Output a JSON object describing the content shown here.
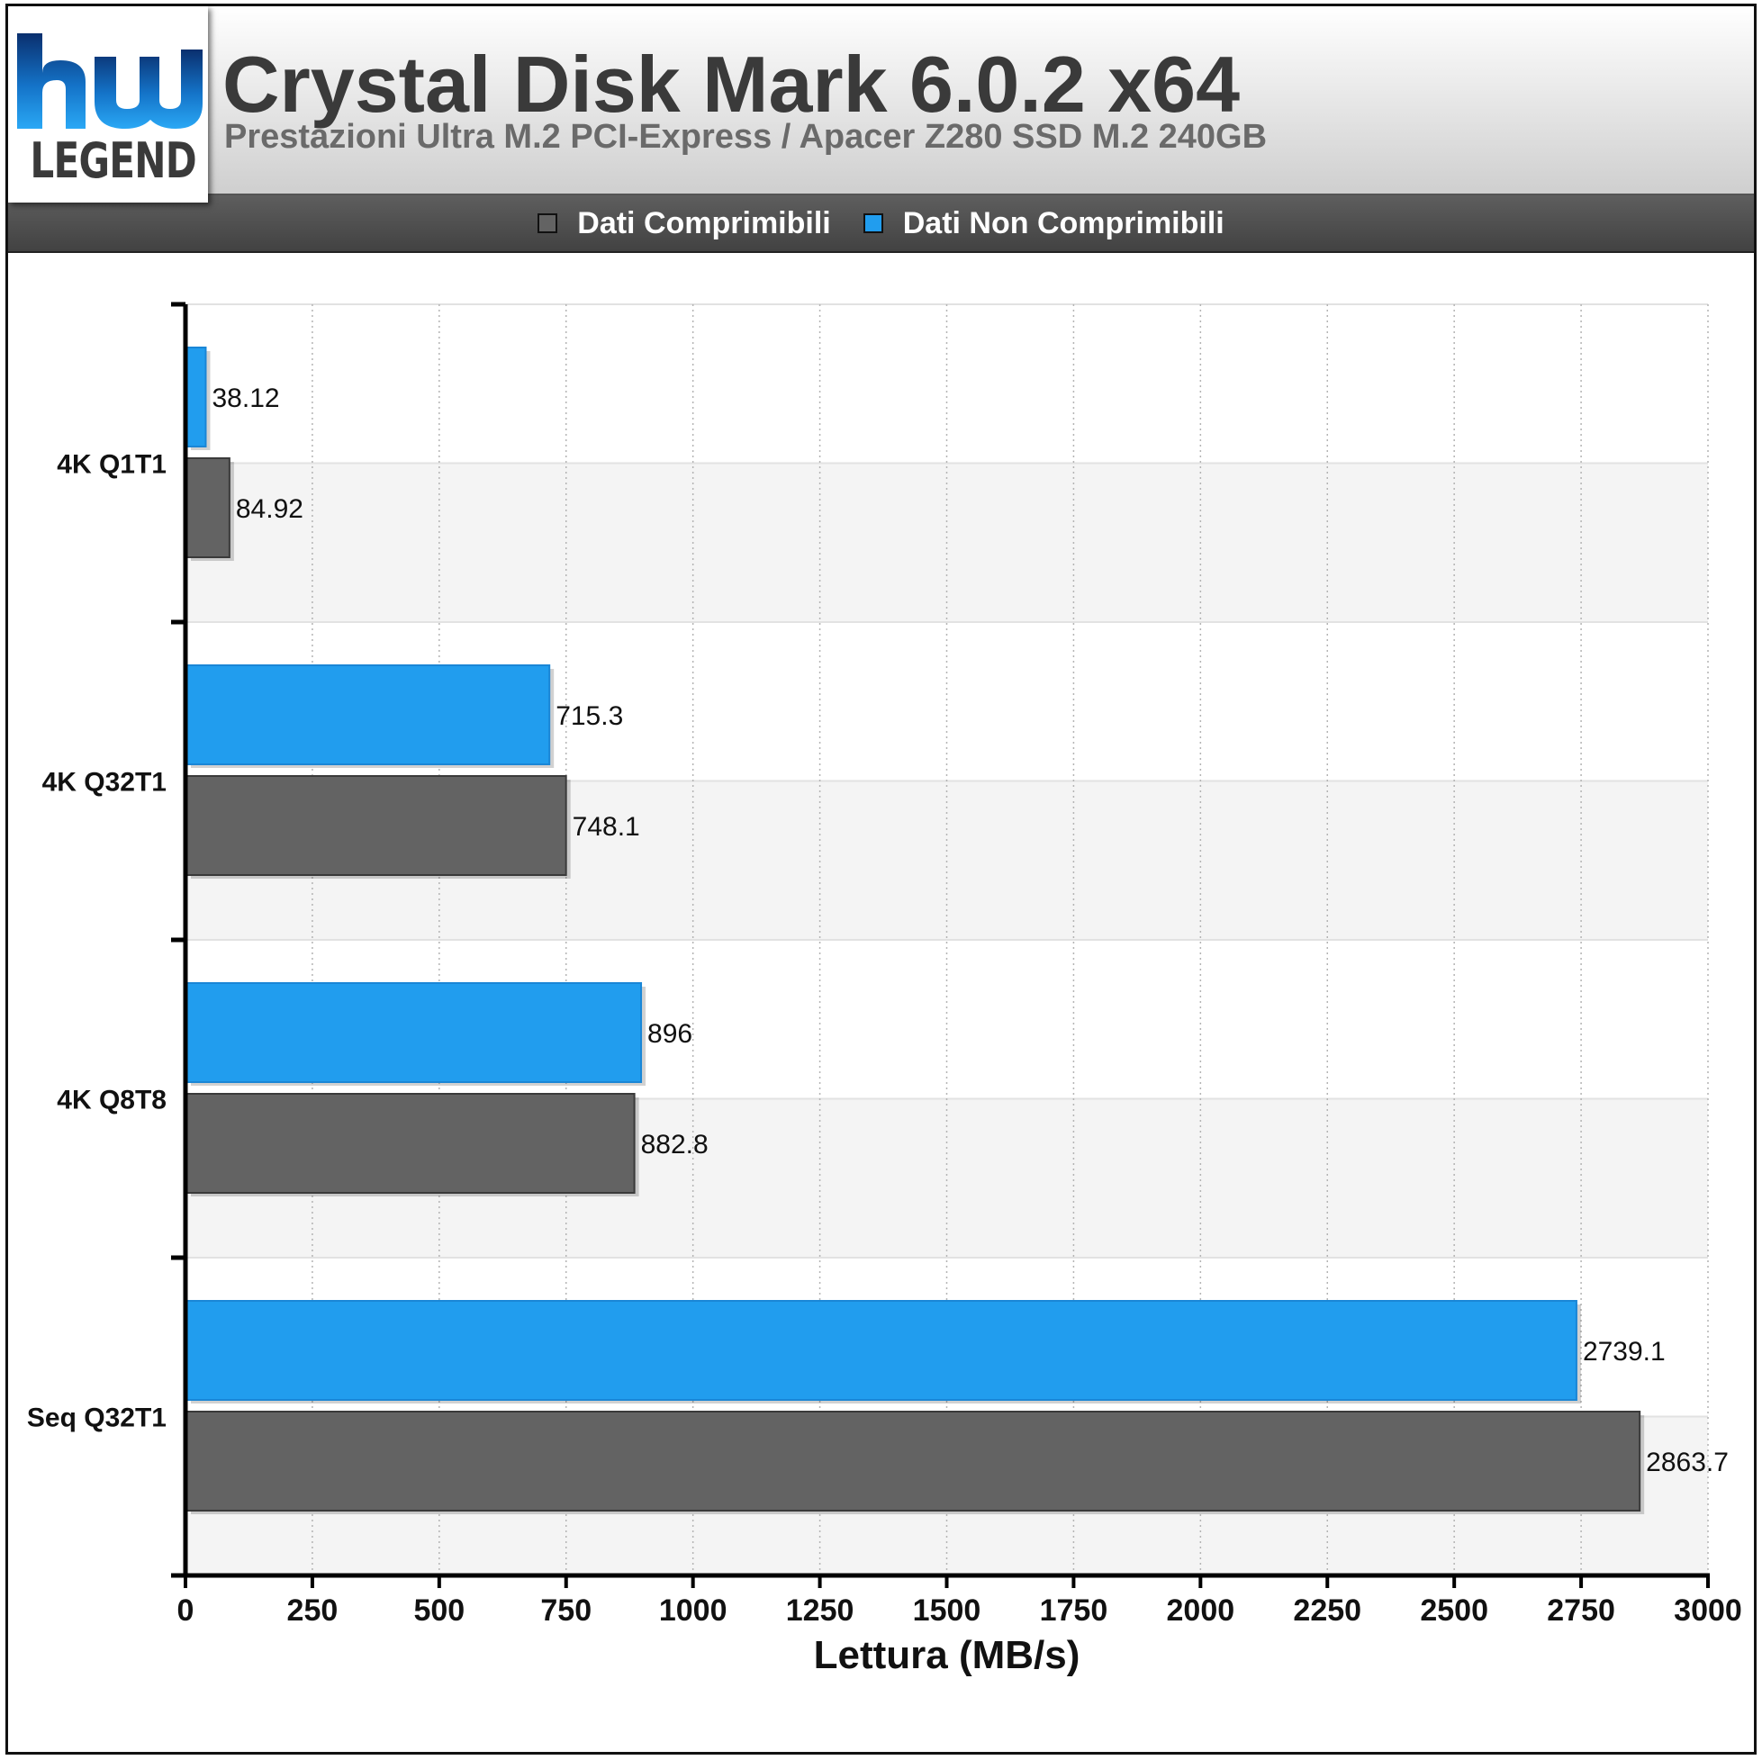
{
  "header": {
    "title": "Crystal Disk Mark 6.0.2 x64",
    "subtitle": "Prestazioni Ultra M.2 PCI-Express / Apacer Z280 SSD M.2 240GB",
    "logo_text": "LEGEND"
  },
  "colors": {
    "compressible": "#636363",
    "non_compressible": "#219dee",
    "band": "#f4f4f4"
  },
  "chart_data": {
    "type": "bar",
    "orientation": "horizontal",
    "categories": [
      "4K Q1T1",
      "4K Q32T1",
      "4K Q8T8",
      "Seq Q32T1"
    ],
    "series": [
      {
        "name": "Dati Non Comprimibili",
        "values": [
          38.12,
          715.3,
          896,
          2739.1
        ],
        "value_labels": [
          "38.12",
          "715.3",
          "896",
          "2739.1"
        ]
      },
      {
        "name": "Dati Comprimibili",
        "values": [
          84.92,
          748.1,
          882.8,
          2863.7
        ],
        "value_labels": [
          "84.92",
          "748.1",
          "882.8",
          "2863.7"
        ]
      }
    ],
    "legend": [
      "Dati Comprimibili",
      "Dati Non Comprimibili"
    ],
    "legend_position": "top",
    "xlabel": "Lettura (MB/s)",
    "xlim": [
      0,
      3000
    ],
    "xticks": [
      0,
      250,
      500,
      750,
      1000,
      1250,
      1500,
      1750,
      2000,
      2250,
      2500,
      2750,
      3000
    ],
    "grid": "vertical-dotted"
  }
}
